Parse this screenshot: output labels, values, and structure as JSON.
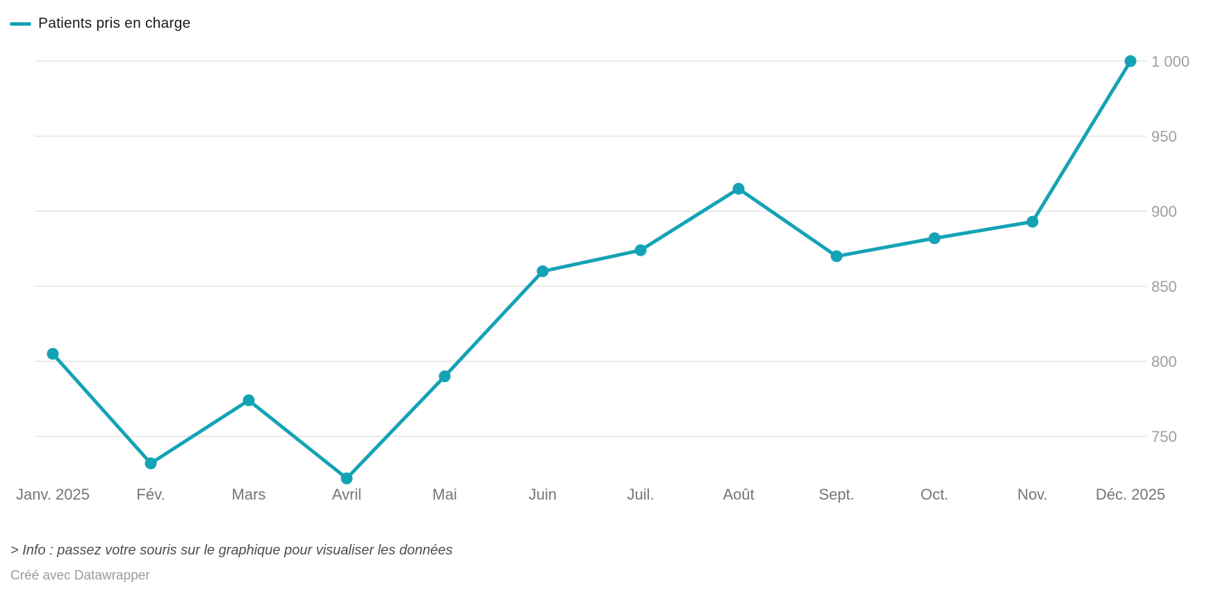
{
  "legend": {
    "label": "Patients pris en charge"
  },
  "colors": {
    "line": "#14a3b5",
    "grid": "#e3e3e3",
    "y_tick_label": "#9e9e9e",
    "x_tick_label": "#757575",
    "legend_text": "#1a1a1a",
    "info_text": "#4d4d4d",
    "credit_text": "#9b9b9b"
  },
  "chart_data": {
    "type": "line",
    "title": "",
    "series": [
      {
        "name": "Patients pris en charge",
        "values": [
          805,
          732,
          774,
          722,
          790,
          860,
          874,
          915,
          870,
          882,
          893,
          1000
        ]
      }
    ],
    "categories": [
      "Janv. 2025",
      "Fév.",
      "Mars",
      "Avril",
      "Mai",
      "Juin",
      "Juil.",
      "Août",
      "Sept.",
      "Oct.",
      "Nov.",
      "Déc. 2025"
    ],
    "xlabel": "",
    "ylabel": "",
    "ylim": [
      700,
      1000
    ],
    "y_axis": {
      "side": "right",
      "tick_values": [
        750,
        800,
        850,
        900,
        950,
        1000
      ],
      "tick_labels": [
        "750",
        "800",
        "850",
        "900",
        "950",
        "1 000"
      ]
    },
    "grid": "horizontal",
    "legend_position": "top-left",
    "markers": "circle"
  },
  "footer": {
    "info": "> Info : passez votre souris sur le graphique pour visualiser les données",
    "credit": "Créé avec Datawrapper"
  }
}
